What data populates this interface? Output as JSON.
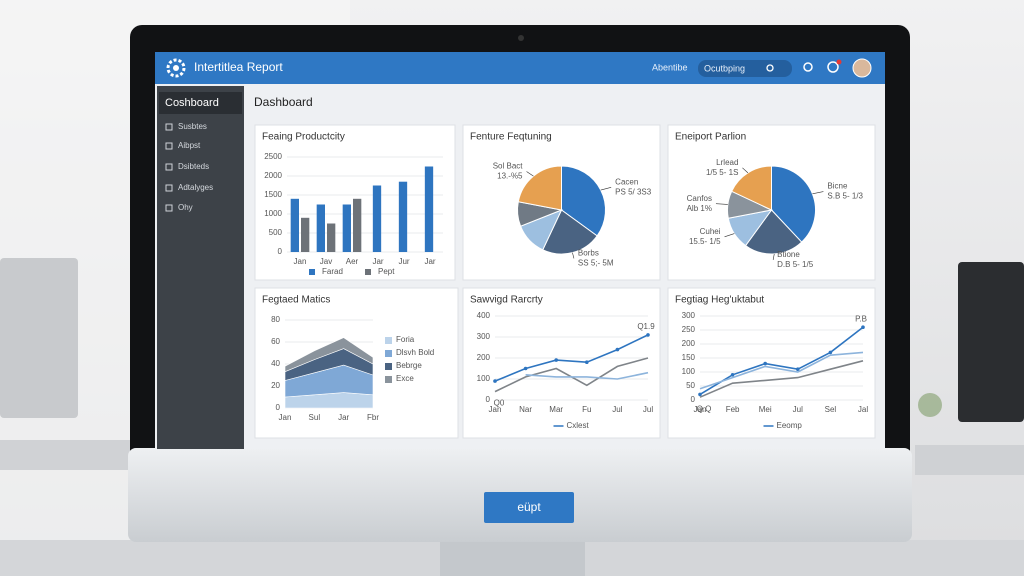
{
  "header": {
    "title": "Intertitlea Report",
    "link": "Abentibe",
    "search": "Ocutbping"
  },
  "sidebar": {
    "items": [
      "Coshboard",
      "Susbtes",
      "Aibpst",
      "Dsibteds",
      "Adtalyges",
      "Ohy"
    ]
  },
  "main": {
    "title": "Dashboard"
  },
  "button": "eüpt",
  "chart_data": [
    {
      "type": "bar",
      "title": "Feaing Productcity",
      "categories": [
        "Jan",
        "Jav",
        "Aer",
        "Jar",
        "Jur",
        "Jar"
      ],
      "series": [
        {
          "name": "Farad",
          "color": "#2e75c0",
          "values": [
            1400,
            1250,
            1250,
            1750,
            1850,
            2250
          ]
        },
        {
          "name": "Pept",
          "color": "#6d7278",
          "values": [
            900,
            750,
            1400,
            null,
            null,
            null
          ]
        }
      ],
      "ylim": [
        0,
        2500
      ],
      "yticks": [
        0,
        500,
        1000,
        1500,
        2000,
        2500
      ]
    },
    {
      "type": "pie",
      "title": "Fenture Feqtuning",
      "categories": [
        "Cacen",
        "Borbs",
        null,
        null,
        "Sol Bact"
      ],
      "sublabels": [
        "PS 5/ 3S3",
        "SS 5;- 5M",
        null,
        null,
        "13.-%5"
      ],
      "values": [
        35,
        22,
        12,
        9,
        22
      ],
      "colors": [
        "#2e75c0",
        "#4a6382",
        "#9dbfe0",
        "#707a85",
        "#e6a050"
      ]
    },
    {
      "type": "pie",
      "title": "Eneiport Parlion",
      "categories": [
        "Bicne",
        "Btione",
        "Cuhei",
        "Canfos",
        "Lrlead"
      ],
      "sublabels": [
        "S.B 5- 1/3",
        "D.B 5- 1/5",
        "15.5- 1/5",
        "Alb 1%",
        "1/5 5- 1S"
      ],
      "values": [
        38,
        22,
        12,
        10,
        18
      ],
      "colors": [
        "#2e75c0",
        "#4a6382",
        "#9dbfe0",
        "#8a939c",
        "#e6a050"
      ]
    },
    {
      "type": "area",
      "title": "Fegtaed Matics",
      "categories": [
        "Jan",
        "Sul",
        "Jar",
        "Fbr"
      ],
      "series": [
        {
          "name": "Foria",
          "color": "#bcd3ea",
          "values": [
            10,
            12,
            14,
            12
          ]
        },
        {
          "name": "Dlsvh Bold",
          "color": "#7fa8d6",
          "values": [
            15,
            20,
            25,
            18
          ]
        },
        {
          "name": "Bebrge",
          "color": "#4a6382",
          "values": [
            8,
            12,
            15,
            10
          ]
        },
        {
          "name": "Exce",
          "color": "#8a939c",
          "values": [
            5,
            8,
            10,
            6
          ]
        }
      ],
      "ylim": [
        0,
        80
      ],
      "yticks": [
        0,
        20,
        40,
        60,
        80
      ]
    },
    {
      "type": "line",
      "title": "Sawvigd Rarcrty",
      "categories": [
        "Jan",
        "Nar",
        "Mar",
        "Fu",
        "Jul",
        "Jul"
      ],
      "series": [
        {
          "name": "Cxlest",
          "color": "#2e75c0",
          "values": [
            90,
            150,
            190,
            180,
            240,
            310
          ]
        },
        {
          "color": "#7f8489",
          "values": [
            40,
            110,
            150,
            70,
            160,
            200
          ]
        },
        {
          "color": "#8db4dc",
          "values": [
            null,
            120,
            110,
            110,
            100,
            130
          ]
        }
      ],
      "annotations": [
        "Q1.9",
        "Q0"
      ],
      "ylim": [
        0,
        400
      ],
      "yticks": [
        0,
        100,
        200,
        300,
        400
      ]
    },
    {
      "type": "line",
      "title": "Fegtiag Heg'uktabut",
      "categories": [
        "Jan",
        "Feb",
        "Mei",
        "Jul",
        "Sel",
        "Jal"
      ],
      "series": [
        {
          "name": "Eeomp",
          "color": "#2e75c0",
          "values": [
            20,
            90,
            130,
            110,
            170,
            260
          ]
        },
        {
          "color": "#7f8489",
          "values": [
            10,
            60,
            70,
            80,
            110,
            140
          ]
        },
        {
          "color": "#8db4dc",
          "values": [
            40,
            80,
            120,
            100,
            160,
            170
          ]
        }
      ],
      "annotations": [
        "P.B",
        "Q.Q"
      ],
      "ylim": [
        0,
        300
      ],
      "yticks": [
        0,
        50,
        100,
        150,
        200,
        250,
        300
      ]
    }
  ]
}
